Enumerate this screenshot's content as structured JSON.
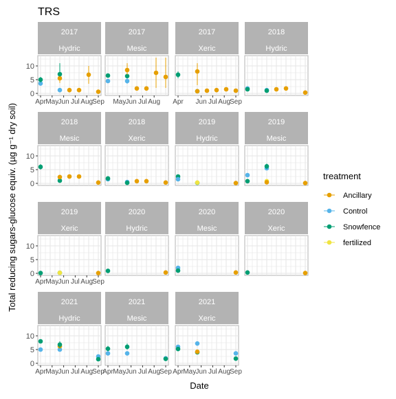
{
  "title": "TRS",
  "xlabel": "Date",
  "ylabel": "Total reducing sugars-glucose equiv. (µg g⁻¹ dry soil)",
  "colors": {
    "Ancillary": "#E69F00",
    "Control": "#56B4E9",
    "Snowfence": "#009E73",
    "fertilized": "#F0E442",
    "strip": "#B3B3B3",
    "panel_border": "#B3B3B3",
    "grid": "#E5E5E5"
  },
  "legend": {
    "title": "treatment",
    "items": [
      "Ancillary",
      "Control",
      "Snowfence",
      "fertilized"
    ]
  },
  "chart_data": {
    "type": "scatter",
    "facet_rows": [
      "year",
      "site"
    ],
    "ylim": [
      0,
      13
    ],
    "y_ticks": [
      "0",
      "5",
      "10"
    ],
    "legend_position": "right",
    "grid": true,
    "series_names": [
      "Ancillary",
      "Control",
      "Snowfence",
      "fertilized"
    ],
    "panels": [
      {
        "year": "2017",
        "site": "Hydric",
        "x_ticks": [
          "Apr",
          "May",
          "Jun",
          "Jul",
          "Aug",
          "Sep"
        ],
        "points": [
          {
            "t": "Control",
            "x": "Apr",
            "y": 3.6,
            "lo": 2.8,
            "hi": 4.4
          },
          {
            "t": "Snowfence",
            "x": "Apr",
            "y": 5.0,
            "lo": 4.0,
            "hi": 6.0
          },
          {
            "t": "Control",
            "x": "Jun",
            "y": 1.2
          },
          {
            "t": "Ancillary",
            "x": "Jun",
            "y": 5.5,
            "lo": 3.8,
            "hi": 7.2
          },
          {
            "t": "Snowfence",
            "x": "Jun",
            "y": 7.0,
            "lo": 6.3,
            "hi": 11.0
          },
          {
            "t": "Ancillary",
            "x": "Jul",
            "y": 1.2
          },
          {
            "t": "Ancillary",
            "x": "Aug",
            "y": 1.2
          },
          {
            "t": "Ancillary",
            "x": "Sep",
            "y": 6.8,
            "lo": 3.5,
            "hi": 10.0
          },
          {
            "t": "Ancillary",
            "x": "Oct",
            "y": 0.6
          }
        ]
      },
      {
        "year": "2017",
        "site": "Mesic",
        "x_ticks": [
          "May",
          "Jun",
          "Jul",
          "Aug"
        ],
        "points": [
          {
            "t": "Control",
            "x": "Apr",
            "y": 4.5
          },
          {
            "t": "Snowfence",
            "x": "Apr",
            "y": 6.5
          },
          {
            "t": "Control",
            "x": "Jun",
            "y": 4.5,
            "lo": 3.5,
            "hi": 5.5
          },
          {
            "t": "Snowfence",
            "x": "Jun",
            "y": 6.3
          },
          {
            "t": "Ancillary",
            "x": "Jun",
            "y": 8.5,
            "lo": 6.8,
            "hi": 11.0
          },
          {
            "t": "Ancillary",
            "x": "Jul",
            "y": 1.8
          },
          {
            "t": "Ancillary",
            "x": "Aug",
            "y": 1.8
          },
          {
            "t": "Ancillary",
            "x": "Sep",
            "y": 7.5,
            "lo": 2.0,
            "hi": 13.0
          },
          {
            "t": "Ancillary",
            "x": "Oct",
            "y": 6.0,
            "lo": 2.0,
            "hi": 13.0
          }
        ]
      },
      {
        "year": "2017",
        "site": "Xeric",
        "x_ticks": [
          "Apr",
          "Jun",
          "Jul",
          "Aug",
          "Sep"
        ],
        "points": [
          {
            "t": "Snowfence",
            "x": "Apr",
            "y": 6.8,
            "lo": 5.5,
            "hi": 8.0
          },
          {
            "t": "Snowfence",
            "x": "Jun",
            "y": 0.8
          },
          {
            "t": "Ancillary",
            "x": "Jun",
            "y": 8.0,
            "lo": 3.0,
            "hi": 11.0
          },
          {
            "t": "Ancillary",
            "x": "Jun",
            "y": 0.8
          },
          {
            "t": "Ancillary",
            "x": "Jul",
            "y": 1.0
          },
          {
            "t": "Ancillary",
            "x": "Aug",
            "y": 1.2
          },
          {
            "t": "Ancillary",
            "x": "Sep",
            "y": 1.5
          },
          {
            "t": "Ancillary",
            "x": "Oct",
            "y": 1.0
          }
        ]
      },
      {
        "year": "2018",
        "site": "Hydric",
        "x_ticks": [],
        "points": [
          {
            "t": "Control",
            "x": "Apr",
            "y": 1.8
          },
          {
            "t": "Snowfence",
            "x": "Apr",
            "y": 1.5
          },
          {
            "t": "Control",
            "x": "Jun",
            "y": 1.2
          },
          {
            "t": "Snowfence",
            "x": "Jun",
            "y": 1.0
          },
          {
            "t": "Ancillary",
            "x": "Jul",
            "y": 1.5
          },
          {
            "t": "Ancillary",
            "x": "Aug",
            "y": 1.8
          },
          {
            "t": "Ancillary",
            "x": "Oct",
            "y": 0.3
          }
        ]
      },
      {
        "year": "2018",
        "site": "Mesic",
        "x_ticks": [],
        "points": [
          {
            "t": "Snowfence",
            "x": "Apr",
            "y": 6.0,
            "lo": 5.0,
            "hi": 7.0
          },
          {
            "t": "Snowfence",
            "x": "Jun",
            "y": 1.0
          },
          {
            "t": "Ancillary",
            "x": "Jun",
            "y": 2.3
          },
          {
            "t": "Ancillary",
            "x": "Jul",
            "y": 2.5
          },
          {
            "t": "Ancillary",
            "x": "Aug",
            "y": 2.5
          },
          {
            "t": "Ancillary",
            "x": "Oct",
            "y": 0.3
          }
        ]
      },
      {
        "year": "2018",
        "site": "Xeric",
        "x_ticks": [],
        "points": [
          {
            "t": "Control",
            "x": "Apr",
            "y": 1.5
          },
          {
            "t": "Snowfence",
            "x": "Apr",
            "y": 1.8
          },
          {
            "t": "Control",
            "x": "Jun",
            "y": 0.5
          },
          {
            "t": "Snowfence",
            "x": "Jun",
            "y": 0.2
          },
          {
            "t": "Ancillary",
            "x": "Jul",
            "y": 0.8
          },
          {
            "t": "Ancillary",
            "x": "Aug",
            "y": 0.8
          },
          {
            "t": "Ancillary",
            "x": "Oct",
            "y": 0.3
          }
        ]
      },
      {
        "year": "2019",
        "site": "Hydric",
        "x_ticks": [],
        "points": [
          {
            "t": "Snowfence",
            "x": "Apr",
            "y": 2.5
          },
          {
            "t": "Control",
            "x": "Apr",
            "y": 1.5
          },
          {
            "t": "Snowfence",
            "x": "Jun",
            "y": 0.2
          },
          {
            "t": "fertilized",
            "x": "Jun",
            "y": 0.3
          },
          {
            "t": "Ancillary",
            "x": "Oct",
            "y": 0.1
          }
        ]
      },
      {
        "year": "2019",
        "site": "Mesic",
        "x_ticks": [],
        "points": [
          {
            "t": "Control",
            "x": "Apr",
            "y": 3.0
          },
          {
            "t": "Snowfence",
            "x": "Apr",
            "y": 0.8
          },
          {
            "t": "Control",
            "x": "Jun",
            "y": 5.5
          },
          {
            "t": "Snowfence",
            "x": "Jun",
            "y": 6.2,
            "lo": 5.2,
            "hi": 7.2
          },
          {
            "t": "fertilized",
            "x": "Jun",
            "y": 0.8
          },
          {
            "t": "Ancillary",
            "x": "Jun",
            "y": 0.4
          },
          {
            "t": "Ancillary",
            "x": "Oct",
            "y": 0.1
          }
        ]
      },
      {
        "year": "2019",
        "site": "Xeric",
        "x_ticks": [
          "Apr",
          "May",
          "Jun",
          "Jul",
          "Aug",
          "Sep"
        ],
        "points": [
          {
            "t": "Snowfence",
            "x": "Apr",
            "y": 0.1
          },
          {
            "t": "Snowfence",
            "x": "Jun",
            "y": 0.2
          },
          {
            "t": "fertilized",
            "x": "Jun",
            "y": 0.2
          },
          {
            "t": "Ancillary",
            "x": "Oct",
            "y": 0.1
          }
        ]
      },
      {
        "year": "2020",
        "site": "Hydric",
        "x_ticks": [],
        "points": [
          {
            "t": "Snowfence",
            "x": "Apr",
            "y": 0.9
          },
          {
            "t": "Ancillary",
            "x": "Oct",
            "y": 0.3
          }
        ]
      },
      {
        "year": "2020",
        "site": "Mesic",
        "x_ticks": [],
        "points": [
          {
            "t": "Control",
            "x": "Apr",
            "y": 2.0
          },
          {
            "t": "Snowfence",
            "x": "Apr",
            "y": 1.0
          },
          {
            "t": "Ancillary",
            "x": "Oct",
            "y": 0.3
          }
        ]
      },
      {
        "year": "2020",
        "site": "Xeric",
        "x_ticks": [],
        "points": [
          {
            "t": "Snowfence",
            "x": "Apr",
            "y": 0.3
          },
          {
            "t": "Ancillary",
            "x": "Oct",
            "y": 0.1
          }
        ]
      },
      {
        "year": "2021",
        "site": "Hydric",
        "x_ticks": [
          "Apr",
          "May",
          "Jun",
          "Jul",
          "Aug",
          "Sep"
        ],
        "points": [
          {
            "t": "Snowfence",
            "x": "Apr",
            "y": 8.0
          },
          {
            "t": "Control",
            "x": "Apr",
            "y": 5.0
          },
          {
            "t": "Control",
            "x": "Jun",
            "y": 5.0
          },
          {
            "t": "Ancillary",
            "x": "Jun",
            "y": 6.2
          },
          {
            "t": "Snowfence",
            "x": "Jun",
            "y": 6.8,
            "lo": 5.5,
            "hi": 8.0
          },
          {
            "t": "Control",
            "x": "Oct",
            "y": 2.5
          },
          {
            "t": "Snowfence",
            "x": "Oct",
            "y": 1.5
          }
        ]
      },
      {
        "year": "2021",
        "site": "Mesic",
        "x_ticks": [
          "Apr",
          "May",
          "Jun",
          "Jul",
          "Aug",
          "Sep"
        ],
        "points": [
          {
            "t": "Snowfence",
            "x": "Apr",
            "y": 5.3,
            "lo": 4.3,
            "hi": 6.3
          },
          {
            "t": "Control",
            "x": "Apr",
            "y": 3.6
          },
          {
            "t": "Control",
            "x": "Jun",
            "y": 3.6
          },
          {
            "t": "Snowfence",
            "x": "Jun",
            "y": 6.0,
            "lo": 5.0,
            "hi": 7.2
          },
          {
            "t": "Control",
            "x": "Oct",
            "y": 1.8
          },
          {
            "t": "Snowfence",
            "x": "Oct",
            "y": 1.6
          }
        ]
      },
      {
        "year": "2021",
        "site": "Xeric",
        "x_ticks": [
          "Apr",
          "May",
          "Jun",
          "Jul",
          "Aug",
          "Sep"
        ],
        "points": [
          {
            "t": "Control",
            "x": "Apr",
            "y": 6.0
          },
          {
            "t": "Snowfence",
            "x": "Apr",
            "y": 5.2
          },
          {
            "t": "Control",
            "x": "Jun",
            "y": 7.2
          },
          {
            "t": "Snowfence",
            "x": "Jun",
            "y": 4.0
          },
          {
            "t": "Ancillary",
            "x": "Jun",
            "y": 4.2
          },
          {
            "t": "Control",
            "x": "Oct",
            "y": 3.6
          },
          {
            "t": "Snowfence",
            "x": "Oct",
            "y": 1.7
          }
        ]
      }
    ]
  }
}
